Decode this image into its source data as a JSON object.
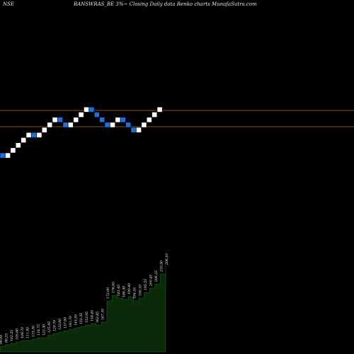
{
  "header": {
    "exchange": "NSE",
    "title": "BANSWRAS_BE 3%~  Closing Daily data  Renko  charts MunafaSutra.com"
  },
  "chart_data": {
    "type": "renko",
    "title": "BANSWRAS_BE 3%~  Closing Daily data  Renko  charts MunafaSutra.com",
    "colors": {
      "up": "#ffffff",
      "down": "#1e6fe0",
      "line": "#b8642a",
      "volume_fill": "#0a2a0a",
      "volume_line": "#1f6b1f"
    },
    "bricks": [
      {
        "dir": "down"
      },
      {
        "dir": "up"
      },
      {
        "dir": "up"
      },
      {
        "dir": "up"
      },
      {
        "dir": "up"
      },
      {
        "dir": "up"
      },
      {
        "dir": "down"
      },
      {
        "dir": "up"
      },
      {
        "dir": "up"
      },
      {
        "dir": "up"
      },
      {
        "dir": "up"
      },
      {
        "dir": "down"
      },
      {
        "dir": "down"
      },
      {
        "dir": "up"
      },
      {
        "dir": "up"
      },
      {
        "dir": "up"
      },
      {
        "dir": "up"
      },
      {
        "dir": "down"
      },
      {
        "dir": "down"
      },
      {
        "dir": "down"
      },
      {
        "dir": "down"
      },
      {
        "dir": "up"
      },
      {
        "dir": "up"
      },
      {
        "dir": "down"
      },
      {
        "dir": "down"
      },
      {
        "dir": "down"
      },
      {
        "dir": "up"
      },
      {
        "dir": "up"
      },
      {
        "dir": "up"
      },
      {
        "dir": "up"
      },
      {
        "dir": "up"
      }
    ],
    "volume_labels": [
      "99.00",
      "99.25",
      "102.25",
      "105.60",
      "108.70",
      "111.95",
      "115.30",
      "118.75",
      "122.30",
      "125.95",
      "129.70",
      "133.60",
      "137.60",
      "141.70",
      "145.95",
      "150.35",
      "153.95",
      "158.45",
      "162.85",
      "167.35",
      "172.00",
      "176.65",
      "181.45",
      "186.30",
      "190.40",
      "194.55",
      "190.10",
      "195.55",
      "200.45",
      "206.25",
      "210.50",
      "206.10"
    ],
    "volume_values": [
      8,
      10,
      12,
      14,
      16,
      16,
      18,
      20,
      20,
      24,
      26,
      28,
      30,
      32,
      34,
      36,
      38,
      40,
      38,
      42,
      72,
      80,
      76,
      74,
      78,
      72,
      76,
      84,
      90,
      96,
      110,
      120
    ]
  }
}
